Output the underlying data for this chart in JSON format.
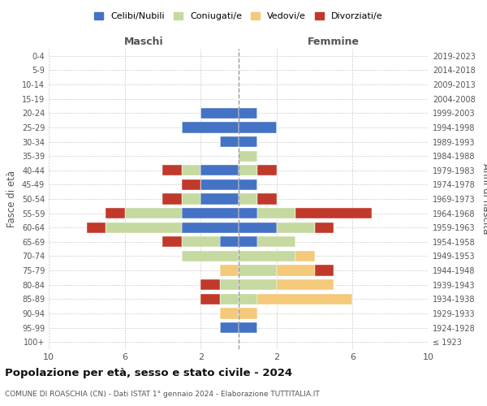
{
  "age_groups": [
    "100+",
    "95-99",
    "90-94",
    "85-89",
    "80-84",
    "75-79",
    "70-74",
    "65-69",
    "60-64",
    "55-59",
    "50-54",
    "45-49",
    "40-44",
    "35-39",
    "30-34",
    "25-29",
    "20-24",
    "15-19",
    "10-14",
    "5-9",
    "0-4"
  ],
  "birth_years": [
    "≤ 1923",
    "1924-1928",
    "1929-1933",
    "1934-1938",
    "1939-1943",
    "1944-1948",
    "1949-1953",
    "1954-1958",
    "1959-1963",
    "1964-1968",
    "1969-1973",
    "1974-1978",
    "1979-1983",
    "1984-1988",
    "1989-1993",
    "1994-1998",
    "1999-2003",
    "2004-2008",
    "2009-2013",
    "2014-2018",
    "2019-2023"
  ],
  "maschi_celibi": [
    0,
    1,
    0,
    0,
    0,
    0,
    0,
    1,
    3,
    3,
    2,
    2,
    2,
    0,
    1,
    3,
    2,
    0,
    0,
    0,
    0
  ],
  "maschi_coniugati": [
    0,
    0,
    0,
    1,
    1,
    0,
    3,
    2,
    4,
    3,
    1,
    0,
    1,
    0,
    0,
    0,
    0,
    0,
    0,
    0,
    0
  ],
  "maschi_vedovi": [
    0,
    0,
    1,
    0,
    0,
    1,
    0,
    0,
    0,
    0,
    0,
    0,
    0,
    0,
    0,
    0,
    0,
    0,
    0,
    0,
    0
  ],
  "maschi_divorziati": [
    0,
    0,
    0,
    1,
    1,
    0,
    0,
    1,
    1,
    1,
    1,
    1,
    1,
    0,
    0,
    0,
    0,
    0,
    0,
    0,
    0
  ],
  "femmine_celibi": [
    0,
    1,
    0,
    0,
    0,
    0,
    0,
    1,
    2,
    1,
    0,
    1,
    0,
    0,
    1,
    2,
    1,
    0,
    0,
    0,
    0
  ],
  "femmine_coniugati": [
    0,
    0,
    0,
    1,
    2,
    2,
    3,
    2,
    2,
    2,
    1,
    0,
    1,
    1,
    0,
    0,
    0,
    0,
    0,
    0,
    0
  ],
  "femmine_vedovi": [
    0,
    0,
    1,
    5,
    3,
    2,
    1,
    0,
    0,
    0,
    0,
    0,
    0,
    0,
    0,
    0,
    0,
    0,
    0,
    0,
    0
  ],
  "femmine_divorziati": [
    0,
    0,
    0,
    0,
    0,
    1,
    0,
    0,
    1,
    4,
    1,
    0,
    1,
    0,
    0,
    0,
    0,
    0,
    0,
    0,
    0
  ],
  "colors": {
    "celibi": "#4472c4",
    "coniugati": "#c5d9a0",
    "vedovi": "#f4c97a",
    "divorziati": "#c0392b"
  },
  "xlim": 10,
  "xticks_display": [
    10,
    6,
    2,
    2,
    6,
    10
  ],
  "xticks_pos": [
    -10,
    -6,
    -2,
    2,
    6,
    10
  ],
  "title": "Popolazione per età, sesso e stato civile - 2024",
  "subtitle": "COMUNE DI ROASCHIA (CN) - Dati ISTAT 1° gennaio 2024 - Elaborazione TUTTITALIA.IT",
  "ylabel_left": "Fasce di età",
  "ylabel_right": "Anni di nascita",
  "header_left": "Maschi",
  "header_right": "Femmine",
  "legend_labels": [
    "Celibi/Nubili",
    "Coniugati/e",
    "Vedovi/e",
    "Divorziati/e"
  ],
  "background_color": "#ffffff",
  "grid_color": "#cccccc"
}
